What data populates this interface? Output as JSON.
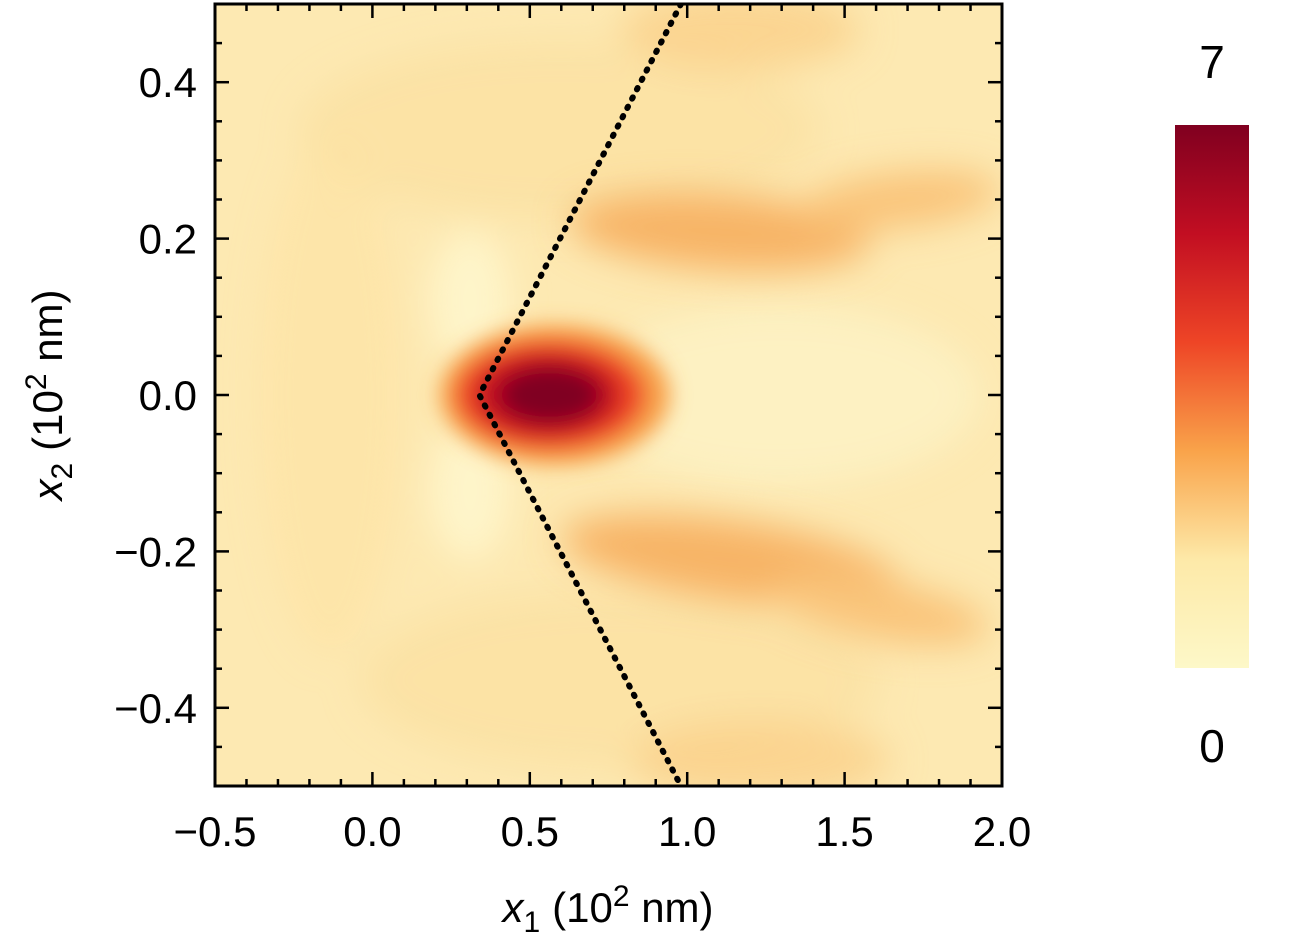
{
  "chart_data": {
    "type": "heatmap",
    "title": "",
    "xlabel": {
      "symbol": "x",
      "subscript": "1",
      "unit": "(10",
      "sup": "2",
      "unit_tail": " nm)"
    },
    "ylabel": {
      "symbol": "x",
      "subscript": "2",
      "unit": "(10",
      "sup": "2",
      "unit_tail": " nm)"
    },
    "xlim": [
      -0.5,
      2.0
    ],
    "ylim": [
      -0.5,
      0.5
    ],
    "x_ticks": [
      -0.5,
      0.0,
      0.5,
      1.0,
      1.5,
      2.0
    ],
    "x_tick_labels": [
      "−0.5",
      "0.0",
      "0.5",
      "1.0",
      "1.5",
      "2.0"
    ],
    "y_ticks": [
      -0.4,
      -0.2,
      0.0,
      0.2,
      0.4
    ],
    "y_tick_labels": [
      "−0.4",
      "−0.2",
      "0.0",
      "0.2",
      "0.4"
    ],
    "colorbar": {
      "min": 0,
      "max": 7,
      "min_label": "0",
      "max_label": "7",
      "colors": [
        "#fdf8c8",
        "#fde9a8",
        "#f9a34a",
        "#ee4526",
        "#c20e22",
        "#800020"
      ]
    },
    "features": [
      {
        "name": "central hot spot",
        "x": 0.52,
        "y": 0.0,
        "value": 7.0
      },
      {
        "name": "upper lobe",
        "x": 0.95,
        "y": 0.2,
        "value": 2.6
      },
      {
        "name": "lower lobe",
        "x": 0.95,
        "y": -0.2,
        "value": 2.6
      }
    ],
    "annotations": [
      {
        "type": "dotted-line",
        "points": [
          [
            0.98,
            0.5
          ],
          [
            0.34,
            0.0
          ],
          [
            0.98,
            -0.5
          ]
        ]
      }
    ],
    "grid": false
  }
}
